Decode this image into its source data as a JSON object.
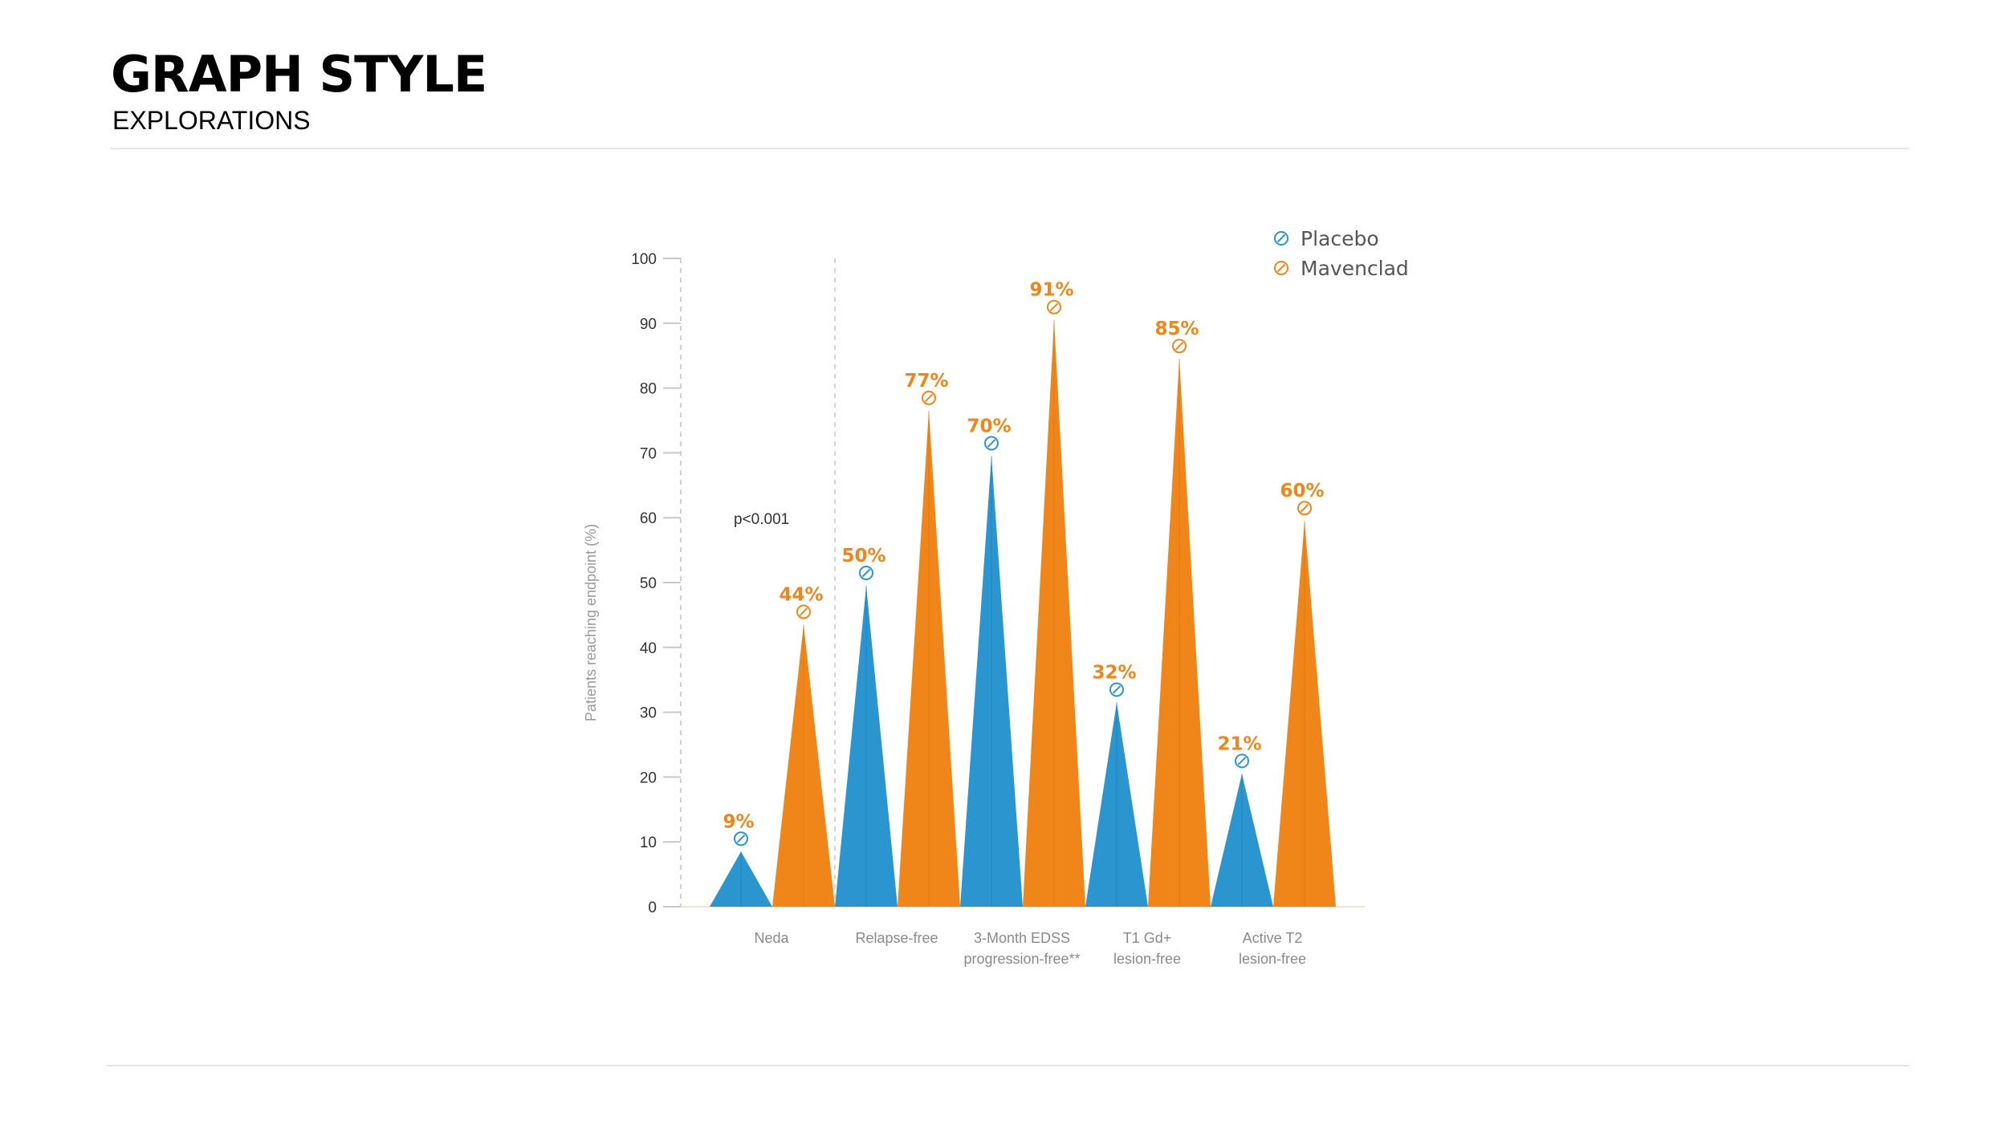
{
  "header": {
    "title": "GRAPH STYLE",
    "subtitle": "EXPLORATIONS"
  },
  "colors": {
    "placebo": "#2b95cf",
    "mavenclad": "#f0861a",
    "axis": "#cccccc"
  },
  "chart_data": {
    "type": "bar",
    "ylabel": "Patients reaching endpoint (%)",
    "ylim": [
      0,
      100
    ],
    "yticks": [
      0,
      10,
      20,
      30,
      40,
      50,
      60,
      70,
      80,
      90,
      100
    ],
    "categories": [
      [
        "Neda"
      ],
      [
        "Relapse-free"
      ],
      [
        "3-Month EDSS",
        "progression-free**"
      ],
      [
        "T1 Gd+",
        "lesion-free"
      ],
      [
        "Active T2",
        "lesion-free"
      ]
    ],
    "series": [
      {
        "name": "Placebo",
        "values": [
          9,
          50,
          70,
          32,
          21
        ],
        "labels": [
          "9%",
          "50%",
          "70%",
          "32%",
          "21%"
        ]
      },
      {
        "name": "Mavenclad",
        "values": [
          44,
          77,
          91,
          85,
          60
        ],
        "labels": [
          "44%",
          "77%",
          "91%",
          "85%",
          "60%"
        ]
      }
    ],
    "annotation": "p<0.001",
    "legend_position": "top-right"
  }
}
